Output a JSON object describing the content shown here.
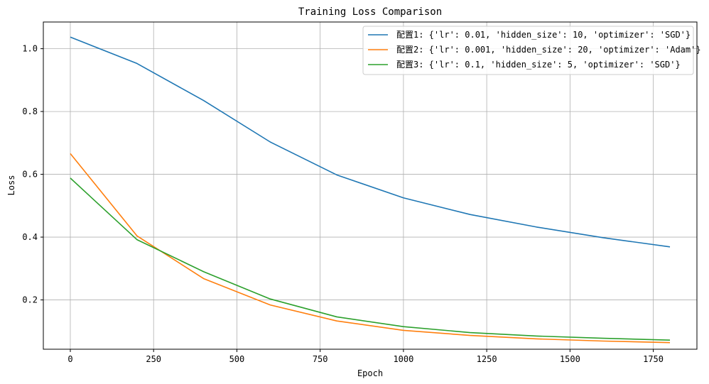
{
  "chart_data": {
    "type": "line",
    "title": "Training Loss Comparison",
    "xlabel": "Epoch",
    "ylabel": "Loss",
    "xlim": [
      -81,
      1881
    ],
    "ylim": [
      0.043,
      1.085
    ],
    "xticks": [
      0,
      250,
      500,
      750,
      1000,
      1250,
      1500,
      1750
    ],
    "yticks": [
      0.2,
      0.4,
      0.6,
      0.8,
      1.0
    ],
    "xtick_labels": [
      "0",
      "250",
      "500",
      "750",
      "1000",
      "1250",
      "1500",
      "1750"
    ],
    "ytick_labels": [
      "0.2",
      "0.4",
      "0.6",
      "0.8",
      "1.0"
    ],
    "grid": true,
    "legend_position": "top-right",
    "x": [
      0,
      200,
      400,
      600,
      800,
      1000,
      1200,
      1400,
      1600,
      1800
    ],
    "series": [
      {
        "name": "配置1: {'lr': 0.01, 'hidden_size': 10, 'optimizer': 'SGD'}",
        "color": "#1f77b4",
        "values": [
          1.037,
          0.953,
          0.835,
          0.703,
          0.598,
          0.525,
          0.472,
          0.432,
          0.398,
          0.369
        ]
      },
      {
        "name": "配置2: {'lr': 0.001, 'hidden_size': 20, 'optimizer': 'Adam'}",
        "color": "#ff7f0e",
        "values": [
          0.666,
          0.404,
          0.268,
          0.184,
          0.133,
          0.103,
          0.087,
          0.076,
          0.069,
          0.064
        ]
      },
      {
        "name": "配置3: {'lr': 0.1, 'hidden_size': 5, 'optimizer': 'SGD'}",
        "color": "#2ca02c",
        "values": [
          0.588,
          0.392,
          0.29,
          0.203,
          0.146,
          0.115,
          0.096,
          0.085,
          0.078,
          0.072
        ]
      }
    ]
  }
}
